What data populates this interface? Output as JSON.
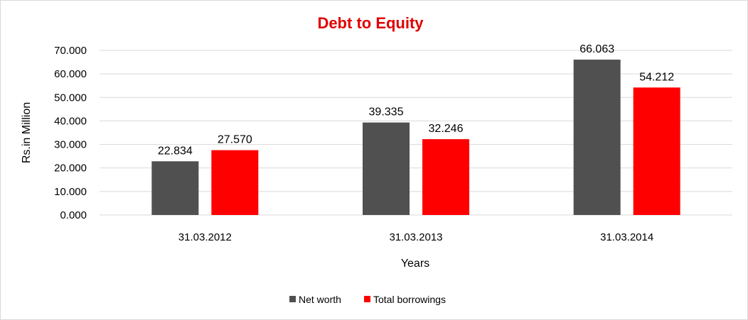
{
  "chart_data": {
    "type": "bar",
    "title": "Debt to Equity",
    "xlabel": "Years",
    "ylabel": "Rs.in Million",
    "categories": [
      "31.03.2012",
      "31.03.2013",
      "31.03.2014"
    ],
    "series": [
      {
        "name": "Net worth",
        "values": [
          22.834,
          39.335,
          66.063
        ],
        "labels": [
          "22.834",
          "39.335",
          "66.063"
        ],
        "color": "#505050"
      },
      {
        "name": "Total borrowings",
        "values": [
          27.57,
          32.246,
          54.212
        ],
        "labels": [
          "27.570",
          "32.246",
          "54.212"
        ],
        "color": "#ff0000"
      }
    ],
    "ylim": [
      0,
      70
    ],
    "yticks": [
      "0.000",
      "10.000",
      "20.000",
      "30.000",
      "40.000",
      "50.000",
      "60.000",
      "70.000"
    ],
    "grid": true,
    "legend_position": "bottom",
    "title_color": "#e00000"
  }
}
